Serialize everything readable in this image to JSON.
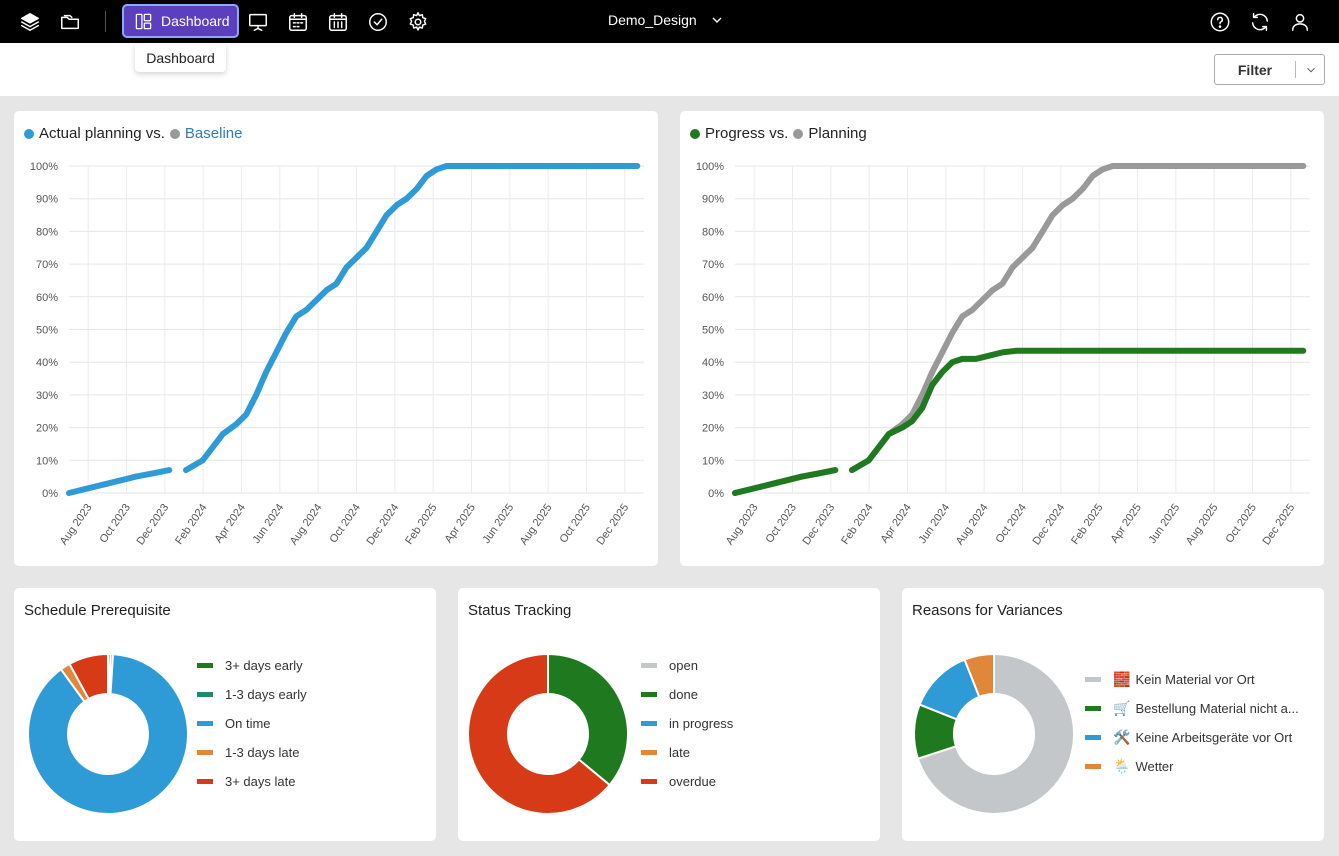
{
  "topbar": {
    "dashboard_label": "Dashboard",
    "project_name": "Demo_Design",
    "icons": [
      "layers-icon",
      "folder-icon",
      "layout-icon",
      "presentation-icon",
      "calendar-week-icon",
      "calendar-grid-icon",
      "check-circle-icon",
      "gear-icon",
      "help-icon",
      "refresh-icon",
      "user-icon",
      "chevron-down-icon"
    ]
  },
  "tooltip": "Dashboard",
  "filter": {
    "label": "Filter"
  },
  "colors": {
    "blue": "#2e9bd6",
    "grey": "#999999",
    "green": "#1f7a1f",
    "teal": "#1e8a70",
    "orange": "#e0873a",
    "red": "#d63a16",
    "light_grey": "#c4c7c9",
    "baseline_link": "#2a7bbf"
  },
  "cards": {
    "planning": {
      "title_a": "Actual planning vs.",
      "title_b": "Baseline"
    },
    "progress": {
      "title_a": "Progress vs.",
      "title_b": "Planning"
    },
    "prereq": {
      "title": "Schedule Prerequisite",
      "legend": [
        "3+ days early",
        "1-3 days early",
        "On time",
        "1-3 days late",
        "3+ days late"
      ]
    },
    "status": {
      "title": "Status Tracking",
      "legend": [
        "open",
        "done",
        "in progress",
        "late",
        "overdue"
      ]
    },
    "variances": {
      "title": "Reasons for Variances",
      "legend": [
        "Kein Material vor Ort",
        "Bestellung Material nicht a...",
        "Keine Arbeitsgeräte vor Ort",
        "Wetter"
      ],
      "emoji": [
        "🧱",
        "🛒",
        "🛠️",
        "🌦️"
      ]
    }
  },
  "chart_data": [
    {
      "type": "line",
      "title": "Actual planning vs. Baseline",
      "x_ticks": [
        "Aug 2023",
        "Oct 2023",
        "Dec 2023",
        "Feb 2024",
        "Apr 2024",
        "Jun 2024",
        "Aug 2024",
        "Oct 2024",
        "Dec 2024",
        "Feb 2025",
        "Apr 2025",
        "Jun 2025",
        "Aug 2025",
        "Oct 2025",
        "Dec 2025"
      ],
      "y_ticks": [
        "0%",
        "10%",
        "20%",
        "30%",
        "40%",
        "50%",
        "60%",
        "70%",
        "80%",
        "90%",
        "100%"
      ],
      "ylim": [
        0,
        100
      ],
      "series": [
        {
          "name": "Actual planning",
          "color": "#2e9bd6",
          "points": [
            [
              0,
              0
            ],
            [
              1.2,
              3
            ],
            [
              2.0,
              5
            ],
            [
              2.5,
              6
            ],
            [
              3.0,
              7
            ],
            [
              3.5,
              7
            ],
            [
              4.0,
              10
            ],
            [
              4.3,
              14
            ],
            [
              4.6,
              18
            ],
            [
              5.0,
              21
            ],
            [
              5.3,
              24
            ],
            [
              5.6,
              30
            ],
            [
              5.9,
              37
            ],
            [
              6.2,
              43
            ],
            [
              6.5,
              49
            ],
            [
              6.8,
              54
            ],
            [
              7.1,
              56
            ],
            [
              7.4,
              59
            ],
            [
              7.7,
              62
            ],
            [
              8.0,
              64
            ],
            [
              8.3,
              69
            ],
            [
              8.6,
              72
            ],
            [
              8.9,
              75
            ],
            [
              9.2,
              80
            ],
            [
              9.5,
              85
            ],
            [
              9.8,
              88
            ],
            [
              10.1,
              90
            ],
            [
              10.4,
              93
            ],
            [
              10.7,
              97
            ],
            [
              11.0,
              99
            ],
            [
              11.3,
              100
            ],
            [
              17.0,
              100
            ]
          ]
        }
      ]
    },
    {
      "type": "line",
      "title": "Progress vs. Planning",
      "x_ticks": [
        "Aug 2023",
        "Oct 2023",
        "Dec 2023",
        "Feb 2024",
        "Apr 2024",
        "Jun 2024",
        "Aug 2024",
        "Oct 2024",
        "Dec 2024",
        "Feb 2025",
        "Apr 2025",
        "Jun 2025",
        "Aug 2025",
        "Oct 2025",
        "Dec 2025"
      ],
      "y_ticks": [
        "0%",
        "10%",
        "20%",
        "30%",
        "40%",
        "50%",
        "60%",
        "70%",
        "80%",
        "90%",
        "100%"
      ],
      "ylim": [
        0,
        100
      ],
      "series": [
        {
          "name": "Planning",
          "color": "#999999",
          "points": [
            [
              0,
              0
            ],
            [
              1.2,
              3
            ],
            [
              2.0,
              5
            ],
            [
              2.5,
              6
            ],
            [
              3.0,
              7
            ],
            [
              3.5,
              7
            ],
            [
              4.0,
              10
            ],
            [
              4.3,
              14
            ],
            [
              4.6,
              18
            ],
            [
              5.0,
              21
            ],
            [
              5.3,
              24
            ],
            [
              5.6,
              30
            ],
            [
              5.9,
              37
            ],
            [
              6.2,
              43
            ],
            [
              6.5,
              49
            ],
            [
              6.8,
              54
            ],
            [
              7.1,
              56
            ],
            [
              7.4,
              59
            ],
            [
              7.7,
              62
            ],
            [
              8.0,
              64
            ],
            [
              8.3,
              69
            ],
            [
              8.6,
              72
            ],
            [
              8.9,
              75
            ],
            [
              9.2,
              80
            ],
            [
              9.5,
              85
            ],
            [
              9.8,
              88
            ],
            [
              10.1,
              90
            ],
            [
              10.4,
              93
            ],
            [
              10.7,
              97
            ],
            [
              11.0,
              99
            ],
            [
              11.3,
              100
            ],
            [
              17.0,
              100
            ]
          ]
        },
        {
          "name": "Progress",
          "color": "#1f7a1f",
          "points": [
            [
              0,
              0
            ],
            [
              1.2,
              3
            ],
            [
              2.0,
              5
            ],
            [
              2.5,
              6
            ],
            [
              3.0,
              7
            ],
            [
              3.5,
              7
            ],
            [
              4.0,
              10
            ],
            [
              4.3,
              14
            ],
            [
              4.6,
              18
            ],
            [
              5.0,
              20
            ],
            [
              5.3,
              22
            ],
            [
              5.6,
              26
            ],
            [
              5.9,
              33
            ],
            [
              6.2,
              37
            ],
            [
              6.5,
              40
            ],
            [
              6.8,
              41
            ],
            [
              7.2,
              41
            ],
            [
              7.6,
              42
            ],
            [
              8.0,
              43
            ],
            [
              8.4,
              43.5
            ],
            [
              17.0,
              43.5
            ]
          ]
        }
      ]
    },
    {
      "type": "pie",
      "title": "Schedule Prerequisite",
      "labels": [
        "3+ days early",
        "1-3 days early",
        "On time",
        "1-3 days late",
        "3+ days late"
      ],
      "values": [
        0.5,
        0.5,
        89,
        2,
        8
      ],
      "colors": [
        "#1f7a1f",
        "#1e8a70",
        "#2e9bd6",
        "#e0873a",
        "#d63a16"
      ]
    },
    {
      "type": "pie",
      "title": "Status Tracking",
      "labels": [
        "open",
        "done",
        "in progress",
        "late",
        "overdue"
      ],
      "values": [
        0,
        36,
        0,
        0,
        64
      ],
      "colors": [
        "#c4c7c9",
        "#1f7a1f",
        "#2e9bd6",
        "#e0873a",
        "#d63a16"
      ]
    },
    {
      "type": "pie",
      "title": "Reasons for Variances",
      "labels": [
        "Kein Material vor Ort",
        "Bestellung Material nicht a...",
        "Keine Arbeitsgeräte vor Ort",
        "Wetter"
      ],
      "values": [
        70,
        11,
        13,
        6
      ],
      "colors": [
        "#c4c7c9",
        "#1f7a1f",
        "#2e9bd6",
        "#e0873a"
      ]
    }
  ]
}
